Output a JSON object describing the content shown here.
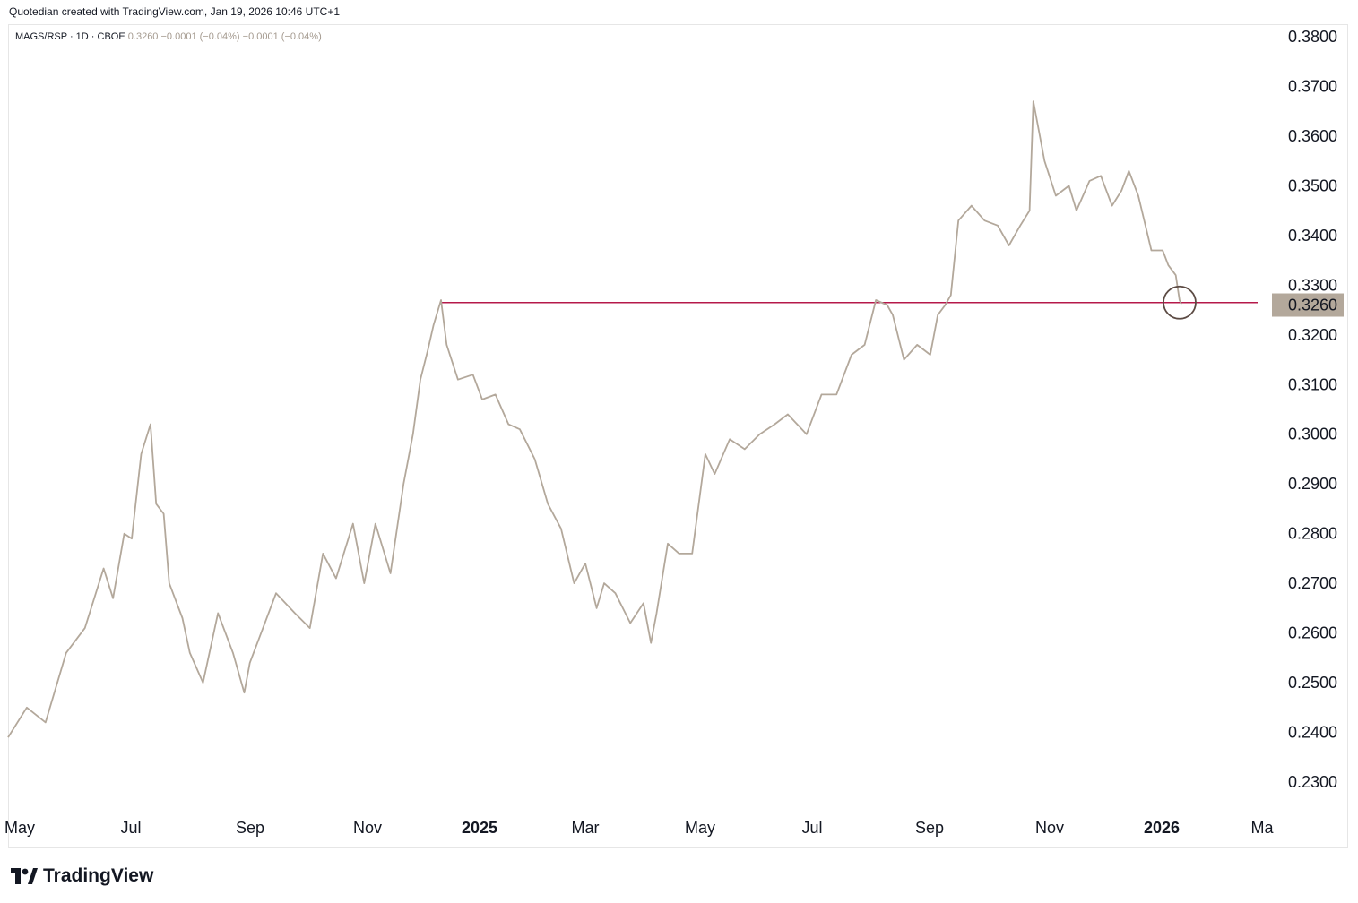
{
  "header": {
    "credit": "Quotedian created with TradingView.com, Jan 19, 2026 10:46 UTC+1"
  },
  "legend": {
    "symbol": "MAGS/RSP",
    "interval": "1D",
    "exchange": "CBOE",
    "last": "0.3260",
    "change": "−0.0001",
    "change_pct": "(−0.04%)",
    "change2": "−0.0001",
    "change2_pct": "(−0.04%)"
  },
  "brand": {
    "name": "TradingView",
    "logo_icon": "tradingview-logo-icon"
  },
  "colors": {
    "series": "#b3a89b",
    "support_line": "#b5194a",
    "circle": "#5c4b44",
    "last_price_bg": "#b3a89b"
  },
  "chart_data": {
    "type": "line",
    "title": "MAGS/RSP · 1D · CBOE",
    "xlabel": "",
    "ylabel": "",
    "ylim": [
      0.222,
      0.382
    ],
    "y_ticks": [
      "0.3800",
      "0.3700",
      "0.3600",
      "0.3500",
      "0.3400",
      "0.3300",
      "0.3200",
      "0.3100",
      "0.3000",
      "0.2900",
      "0.2800",
      "0.2700",
      "0.2600",
      "0.2500",
      "0.2400",
      "0.2300"
    ],
    "x_ticks": [
      {
        "label": "May",
        "bold": false
      },
      {
        "label": "Jul",
        "bold": false
      },
      {
        "label": "Sep",
        "bold": false
      },
      {
        "label": "Nov",
        "bold": false
      },
      {
        "label": "2025",
        "bold": true
      },
      {
        "label": "Mar",
        "bold": false
      },
      {
        "label": "May",
        "bold": false
      },
      {
        "label": "Jul",
        "bold": false
      },
      {
        "label": "Sep",
        "bold": false
      },
      {
        "label": "Nov",
        "bold": false
      },
      {
        "label": "2026",
        "bold": true
      },
      {
        "label": "Ma",
        "bold": false
      }
    ],
    "last_price": "0.3260",
    "horizontal_line": {
      "value": 0.3265,
      "from": "2024-12-17"
    },
    "highlight_circle": {
      "x": "2026-01-16",
      "y": 0.3265
    },
    "series": [
      {
        "x": [
          "2024-04-30",
          "2024-05-10",
          "2024-05-20",
          "2024-05-31",
          "2024-06-10",
          "2024-06-20",
          "2024-06-25",
          "2024-07-01",
          "2024-07-05",
          "2024-07-10",
          "2024-07-15",
          "2024-07-18",
          "2024-07-22",
          "2024-07-25",
          "2024-08-01",
          "2024-08-05",
          "2024-08-12",
          "2024-08-20",
          "2024-08-28",
          "2024-09-03",
          "2024-09-06",
          "2024-09-12",
          "2024-09-20",
          "2024-09-30",
          "2024-10-08",
          "2024-10-15",
          "2024-10-22",
          "2024-10-31",
          "2024-11-06",
          "2024-11-12",
          "2024-11-20",
          "2024-11-27",
          "2024-12-02",
          "2024-12-06",
          "2024-12-10",
          "2024-12-13",
          "2024-12-17",
          "2024-12-20",
          "2024-12-26",
          "2025-01-03",
          "2025-01-08",
          "2025-01-15",
          "2025-01-22",
          "2025-01-28",
          "2025-02-05",
          "2025-02-12",
          "2025-02-19",
          "2025-02-26",
          "2025-03-04",
          "2025-03-10",
          "2025-03-14",
          "2025-03-20",
          "2025-03-28",
          "2025-04-04",
          "2025-04-08",
          "2025-04-11",
          "2025-04-17",
          "2025-04-23",
          "2025-04-30",
          "2025-05-07",
          "2025-05-12",
          "2025-05-20",
          "2025-05-28",
          "2025-06-05",
          "2025-06-13",
          "2025-06-20",
          "2025-06-30",
          "2025-07-08",
          "2025-07-16",
          "2025-07-24",
          "2025-07-31",
          "2025-08-06",
          "2025-08-12",
          "2025-08-15",
          "2025-08-21",
          "2025-08-28",
          "2025-09-04",
          "2025-09-08",
          "2025-09-12",
          "2025-09-15",
          "2025-09-19",
          "2025-09-26",
          "2025-10-03",
          "2025-10-10",
          "2025-10-16",
          "2025-10-22",
          "2025-10-27",
          "2025-10-29",
          "2025-11-04",
          "2025-11-10",
          "2025-11-17",
          "2025-11-21",
          "2025-11-28",
          "2025-12-04",
          "2025-12-10",
          "2025-12-15",
          "2025-12-19",
          "2025-12-24",
          "2025-12-31",
          "2026-01-06",
          "2026-01-09",
          "2026-01-13",
          "2026-01-15",
          "2026-01-16"
        ],
        "values": [
          0.239,
          0.245,
          0.242,
          0.256,
          0.261,
          0.273,
          0.267,
          0.28,
          0.279,
          0.296,
          0.302,
          0.286,
          0.284,
          0.27,
          0.263,
          0.256,
          0.25,
          0.264,
          0.256,
          0.248,
          0.254,
          0.26,
          0.268,
          0.264,
          0.261,
          0.276,
          0.271,
          0.282,
          0.27,
          0.282,
          0.272,
          0.29,
          0.3,
          0.311,
          0.317,
          0.322,
          0.327,
          0.318,
          0.311,
          0.312,
          0.307,
          0.308,
          0.302,
          0.301,
          0.295,
          0.286,
          0.281,
          0.27,
          0.274,
          0.265,
          0.27,
          0.268,
          0.262,
          0.266,
          0.258,
          0.264,
          0.278,
          0.276,
          0.276,
          0.296,
          0.292,
          0.299,
          0.297,
          0.3,
          0.302,
          0.304,
          0.3,
          0.308,
          0.308,
          0.316,
          0.318,
          0.327,
          0.326,
          0.324,
          0.315,
          0.318,
          0.316,
          0.324,
          0.326,
          0.328,
          0.343,
          0.346,
          0.343,
          0.342,
          0.338,
          0.342,
          0.345,
          0.367,
          0.355,
          0.348,
          0.35,
          0.345,
          0.351,
          0.352,
          0.346,
          0.349,
          0.353,
          0.348,
          0.337,
          0.337,
          0.334,
          0.332,
          0.327,
          0.3262
        ]
      }
    ]
  }
}
